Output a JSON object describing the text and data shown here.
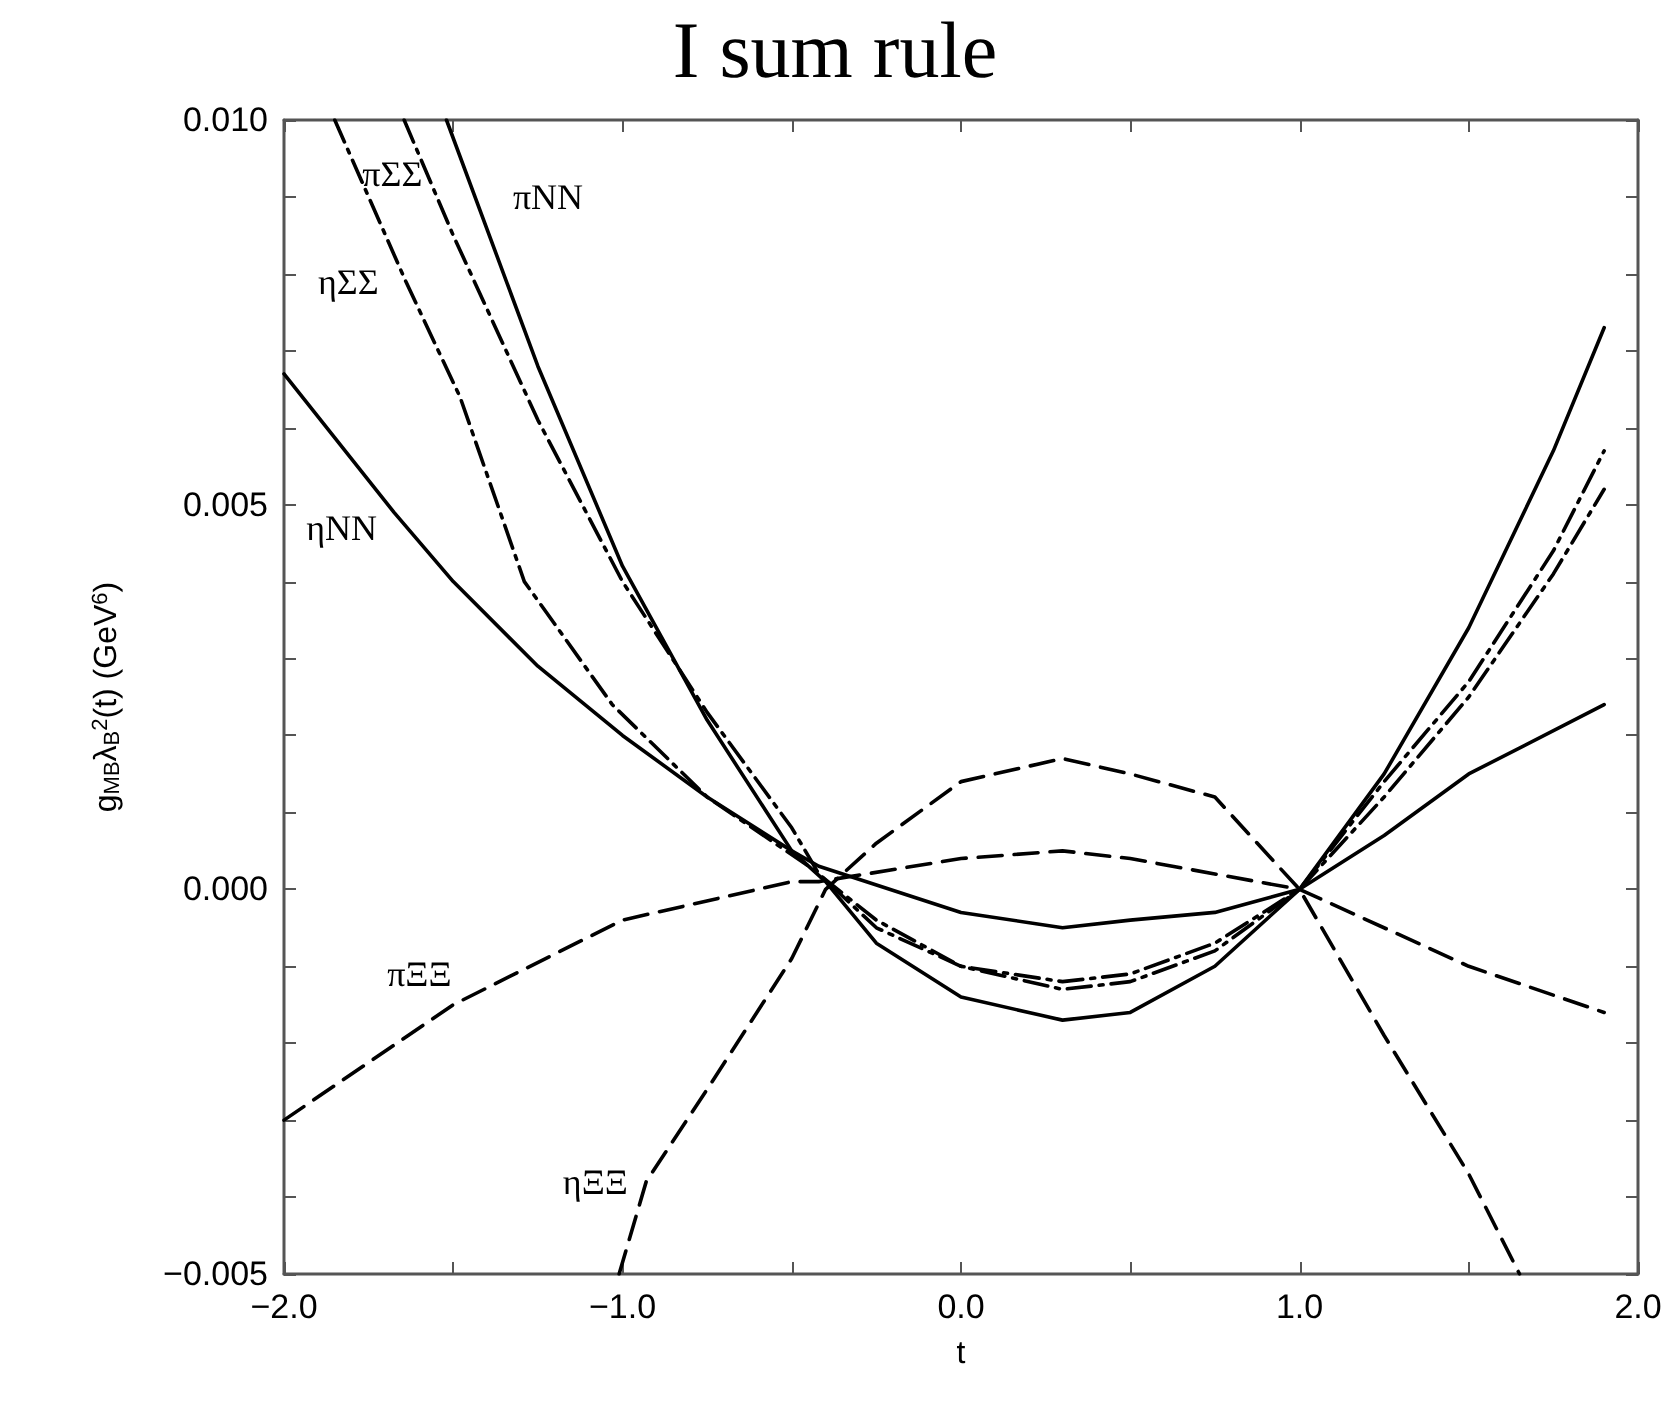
{
  "chart_data": {
    "type": "line",
    "title": "I sum rule",
    "xlabel": "t",
    "ylabel": "g$_{MB}$λ$_{B}$$^{2}$(t) (GeV$^{6}$)",
    "xlim": [
      -2,
      2
    ],
    "xticks": [
      {
        "value": -2,
        "label": "−2.0"
      },
      {
        "value": -1.5,
        "label": null
      },
      {
        "value": -1,
        "label": "−1.0"
      },
      {
        "value": -0.5,
        "label": null
      },
      {
        "value": 0,
        "label": "0.0"
      },
      {
        "value": 0.5,
        "label": null
      },
      {
        "value": 1,
        "label": "1.0"
      },
      {
        "value": 1.5,
        "label": null
      },
      {
        "value": 2,
        "label": "2.0"
      }
    ],
    "ylim": [
      -0.005,
      0.01
    ],
    "yticks": [
      {
        "value": -0.005,
        "label": "−0.005"
      },
      {
        "value": -0.004,
        "label": null
      },
      {
        "value": -0.003,
        "label": null
      },
      {
        "value": -0.002,
        "label": null
      },
      {
        "value": -0.001,
        "label": null
      },
      {
        "value": 0,
        "label": "0.000"
      },
      {
        "value": 0.001,
        "label": null
      },
      {
        "value": 0.002,
        "label": null
      },
      {
        "value": 0.003,
        "label": null
      },
      {
        "value": 0.004,
        "label": null
      },
      {
        "value": 0.005,
        "label": "0.005"
      },
      {
        "value": 0.006,
        "label": null
      },
      {
        "value": 0.007,
        "label": null
      },
      {
        "value": 0.008,
        "label": null
      },
      {
        "value": 0.009,
        "label": null
      },
      {
        "value": 0.01,
        "label": "0.010"
      }
    ],
    "marker": "none",
    "series": [
      {
        "name": "πNN",
        "color": "#000000",
        "line_style": "solid",
        "x": [
          -1.52,
          -1.25,
          -1,
          -0.75,
          -0.5,
          -0.4,
          -0.25,
          0,
          0.3,
          0.5,
          0.75,
          1,
          1.25,
          1.5,
          1.75,
          1.9
        ],
        "values": [
          0.01,
          0.0068,
          0.0042,
          0.0022,
          0.0005,
          0.0001,
          -0.0007,
          -0.0014,
          -0.0017,
          -0.0016,
          -0.001,
          0,
          0.0015,
          0.0034,
          0.0057,
          0.0073
        ]
      },
      {
        "name": "πΣΣ",
        "color": "#000000",
        "line_style": "dashdot",
        "x": [
          -1.645,
          -1.5,
          -1.25,
          -1,
          -0.75,
          -0.5,
          -0.42,
          -0.25,
          0,
          0.3,
          0.5,
          0.75,
          1,
          1.25,
          1.5,
          1.75,
          1.9
        ],
        "values": [
          0.01,
          0.0085,
          0.0061,
          0.004,
          0.0023,
          0.0008,
          0.0002,
          -0.0005,
          -0.001,
          -0.0013,
          -0.0012,
          -0.0008,
          0,
          0.0014,
          0.0027,
          0.0044,
          0.0057
        ]
      },
      {
        "name": "ηΣΣ",
        "color": "#000000",
        "line_style": "dashdot",
        "x": [
          -1.85,
          -1.64,
          -1.48,
          -1.29,
          -1.03,
          -0.75,
          -0.45,
          -0.25,
          0,
          0.3,
          0.5,
          0.75,
          1,
          1.25,
          1.5,
          1.75,
          1.9
        ],
        "values": [
          0.01,
          0.0079,
          0.0064,
          0.004,
          0.0024,
          0.0012,
          0.0003,
          -0.0004,
          -0.001,
          -0.0012,
          -0.0011,
          -0.0007,
          0,
          0.0012,
          0.0025,
          0.0041,
          0.0052
        ]
      },
      {
        "name": "ηNN",
        "color": "#000000",
        "line_style": "solid",
        "x": [
          -2,
          -1.675,
          -1.5,
          -1.25,
          -1,
          -0.75,
          -0.5,
          -0.42,
          0,
          0.3,
          0.5,
          0.75,
          1,
          1.25,
          1.5,
          1.9
        ],
        "values": [
          0.0067,
          0.0049,
          0.004,
          0.0029,
          0.002,
          0.0012,
          0.0005,
          0.0003,
          -0.0003,
          -0.0005,
          -0.0004,
          -0.0003,
          0,
          0.0007,
          0.0015,
          0.0024
        ]
      },
      {
        "name": "πΞΞ",
        "color": "#000000",
        "line_style": "dashed",
        "x": [
          -2,
          -1.5,
          -1,
          -0.5,
          -0.42,
          0,
          0.3,
          0.5,
          1,
          1.5,
          1.9
        ],
        "values": [
          -0.003,
          -0.0015,
          -0.0004,
          0.0001,
          0.0001,
          0.0004,
          0.0005,
          0.0004,
          0,
          -0.001,
          -0.0016
        ]
      },
      {
        "name": "ηΞΞ",
        "color": "#000000",
        "line_style": "dashed",
        "x": [
          -1.01,
          -0.93,
          -0.75,
          -0.5,
          -0.4,
          -0.25,
          0,
          0.3,
          0.5,
          0.75,
          1,
          1.25,
          1.5,
          1.65
        ],
        "values": [
          -0.005,
          -0.0038,
          -0.0026,
          -0.0009,
          0,
          0.0006,
          0.0014,
          0.0017,
          0.0015,
          0.0012,
          0,
          -0.0019,
          -0.0037,
          -0.005
        ]
      }
    ]
  }
}
